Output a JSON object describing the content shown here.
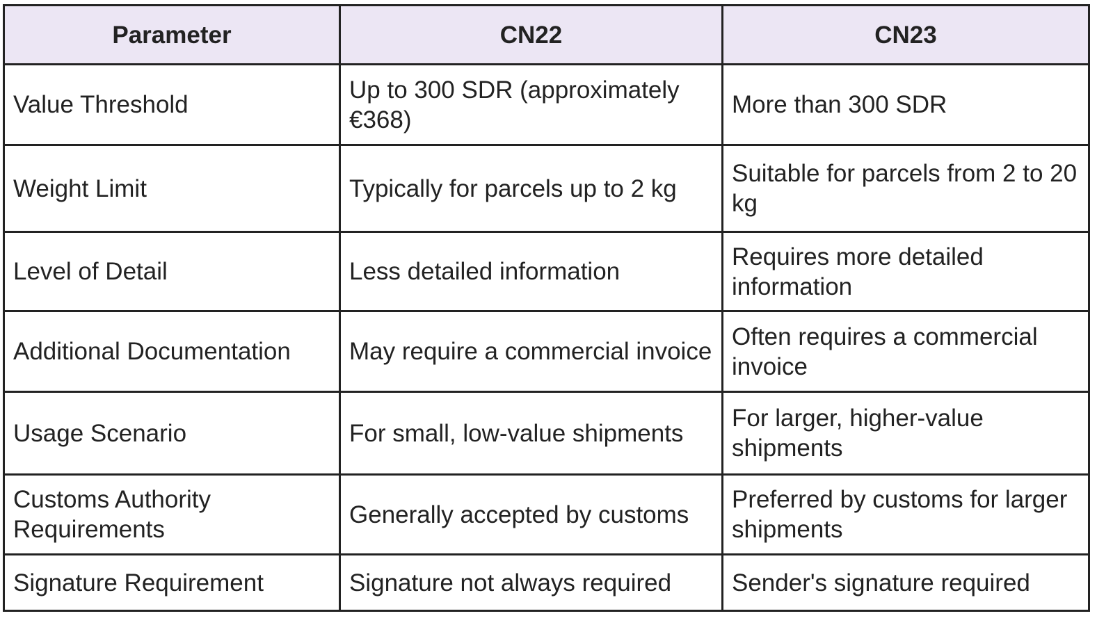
{
  "table": {
    "header": [
      "Parameter",
      "CN22",
      "CN23"
    ],
    "rows": [
      [
        "Value Threshold",
        "Up to 300 SDR (approximately €368)",
        "More than 300 SDR"
      ],
      [
        "Weight Limit",
        "Typically for parcels up to 2 kg",
        "Suitable for parcels from 2 to 20 kg"
      ],
      [
        "Level of Detail",
        "Less detailed information",
        "Requires more detailed information"
      ],
      [
        "Additional Documentation",
        "May require a commercial invoice",
        "Often requires a commercial invoice"
      ],
      [
        "Usage Scenario",
        "For small, low-value shipments",
        "For larger, higher-value shipments"
      ],
      [
        "Customs Authority Requirements",
        "Generally accepted by customs",
        "Preferred by customs for larger shipments"
      ],
      [
        "Signature Requirement",
        "Signature not always required",
        "Sender's signature required"
      ]
    ]
  }
}
